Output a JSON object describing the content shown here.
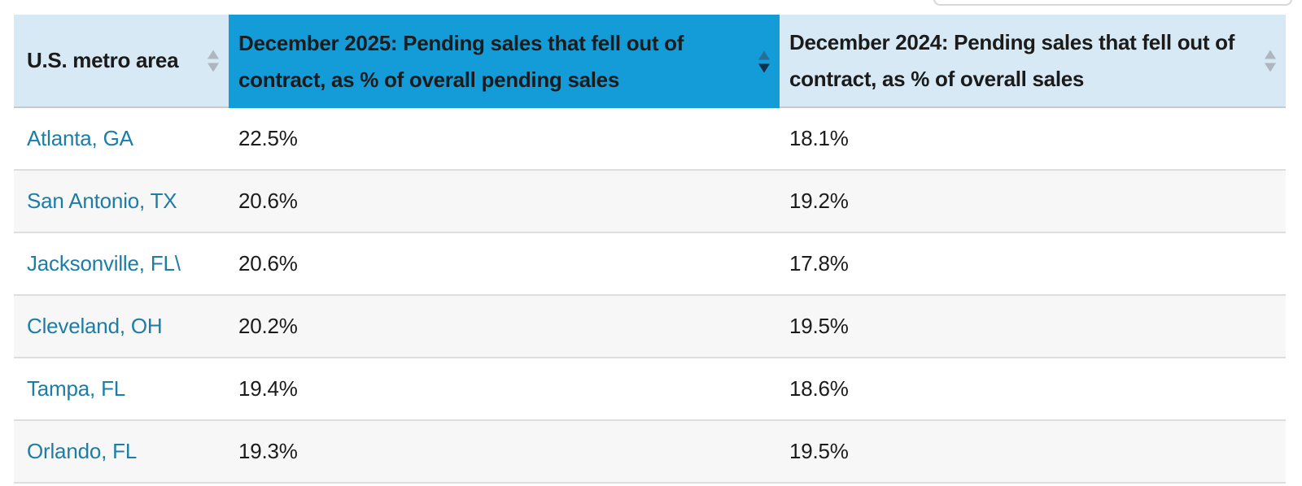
{
  "colors": {
    "header-active-bg": "#149CD8",
    "header-light-bg": "#D7E9F4",
    "header-divider": "#CACACA",
    "divider": "#DEDEDE",
    "row-alt-bg": "#F7F7F7",
    "link": "#1C7DA6",
    "text": "#1B1B1B",
    "sort-inactive": "#AEB6BF",
    "sort-up-active": "#256E99",
    "sort-down-active": "#13304A"
  },
  "sort_state": {
    "sorted_column_index": 1,
    "direction": "desc"
  },
  "chart_data": {
    "type": "table",
    "columns": [
      "U.S. metro area",
      "December 2025: Pending sales that fell out of contract, as % of overall pending sales",
      "December 2024: Pending sales that fell out of contract, as % of overall sales"
    ],
    "rows": [
      [
        "Atlanta, GA",
        "22.5%",
        "18.1%"
      ],
      [
        "San Antonio, TX",
        "20.6%",
        "19.2%"
      ],
      [
        "Jacksonville, FL\\",
        "20.6%",
        "17.8%"
      ],
      [
        "Cleveland, OH",
        "20.2%",
        "19.5%"
      ],
      [
        "Tampa, FL",
        "19.4%",
        "18.6%"
      ],
      [
        "Orlando, FL",
        "19.3%",
        "19.5%"
      ]
    ],
    "values_numeric": {
      "dec_2025_pct": [
        22.5,
        20.6,
        20.6,
        20.2,
        19.4,
        19.3
      ],
      "dec_2024_pct": [
        18.1,
        19.2,
        17.8,
        19.5,
        18.6,
        19.5
      ]
    },
    "layout_hints": {
      "row_striping": true,
      "sorted_by": "December 2025 column, descending"
    }
  }
}
